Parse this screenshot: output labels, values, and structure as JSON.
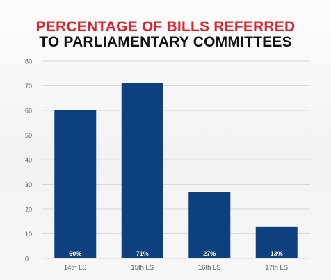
{
  "colors": {
    "title_line_1": "#e3202a",
    "title_line_2": "#111111",
    "bar": "#0e3f7e",
    "bar_label": "#ffffff",
    "grid": "#d9d9d9",
    "axis_text": "#555555"
  },
  "chart_data": {
    "type": "bar",
    "title_lines": [
      "PERCENTAGE OF BILLS REFERRED",
      "TO PARLIAMENTARY COMMITTEES"
    ],
    "xlabel": "",
    "ylabel": "",
    "categories": [
      "14th LS",
      "15th LS",
      "16th LS",
      "17th LS"
    ],
    "values": [
      60,
      71,
      27,
      13
    ],
    "data_labels": [
      "60%",
      "71%",
      "27%",
      "13%"
    ],
    "ylim": [
      0,
      80
    ],
    "yticks": [
      0,
      10,
      20,
      30,
      40,
      50,
      60,
      70,
      80
    ],
    "grid": true,
    "legend": "none"
  }
}
